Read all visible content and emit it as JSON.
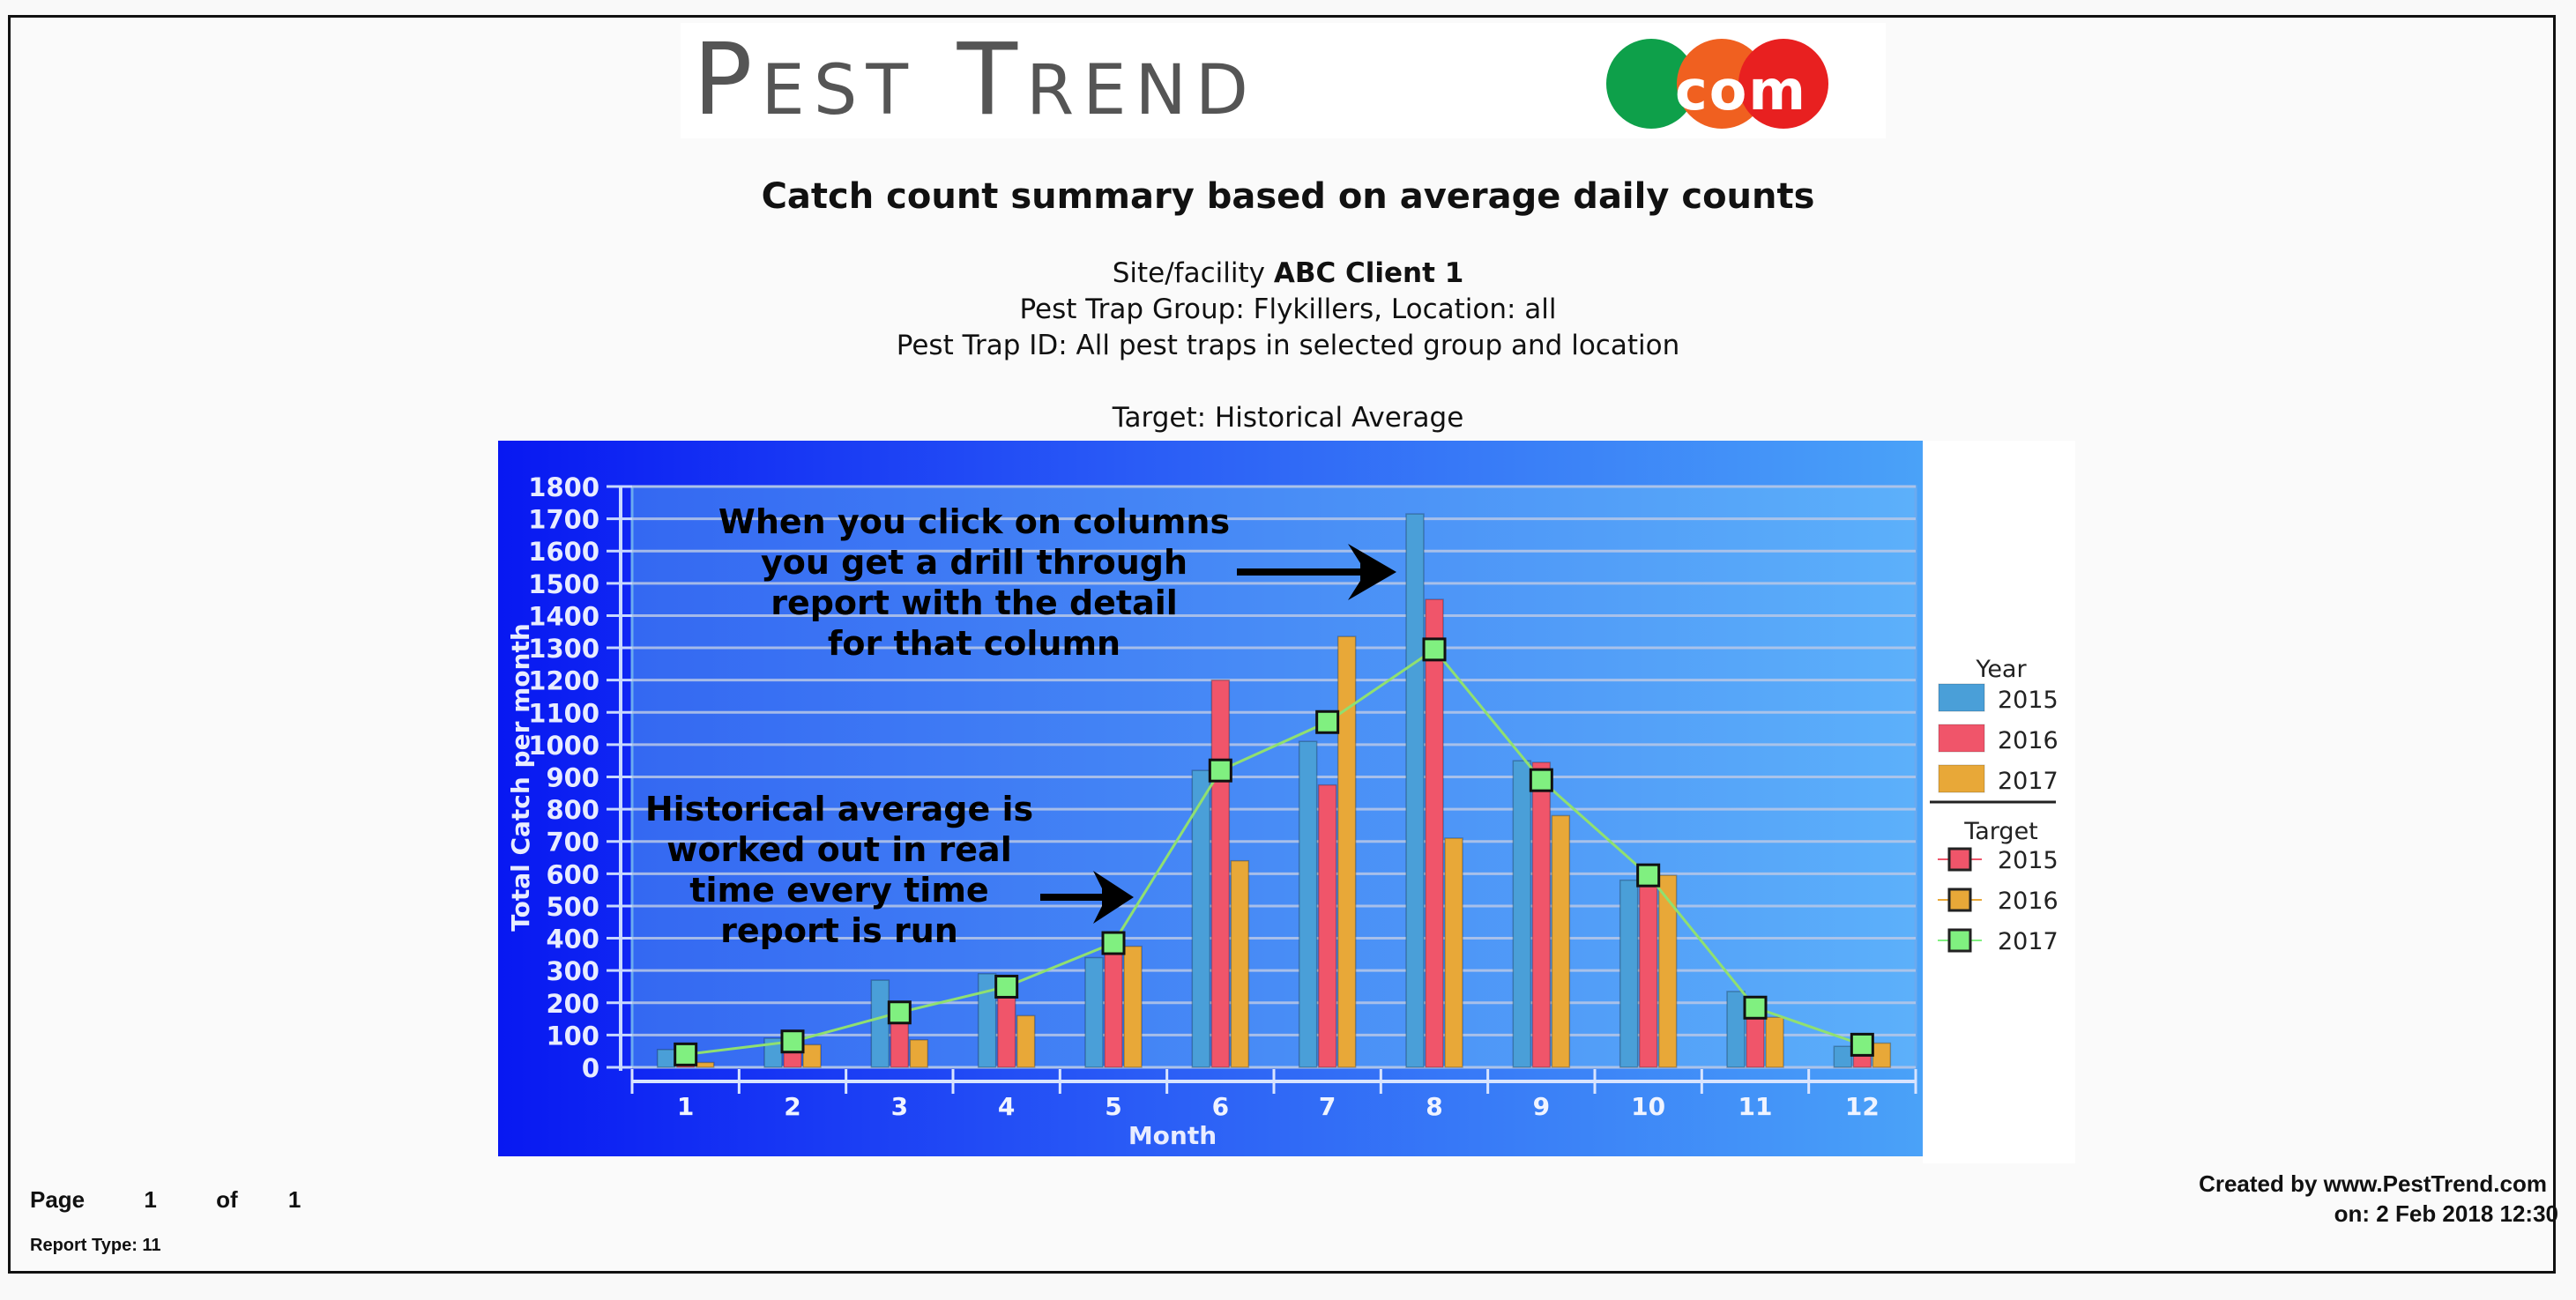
{
  "logo": {
    "text": "Pest Trend",
    "suffix": "com"
  },
  "report": {
    "title": "Catch count summary based on average daily counts",
    "site_label": "Site/facility",
    "site_value": "ABC Client 1",
    "group_line": "Pest Trap Group: Flykillers, Location: all",
    "trap_line": "Pest Trap ID: All pest traps in selected group and location",
    "target_line": "Target: Historical Average"
  },
  "chart_data": {
    "type": "bar",
    "title": "",
    "xlabel": "Month",
    "ylabel": "Total Catch per month",
    "ylim": [
      0,
      1800
    ],
    "yticks": [
      "0",
      "100",
      "200",
      "300",
      "400",
      "500",
      "600",
      "700",
      "800",
      "900",
      "1000",
      "1100",
      "1200",
      "1300",
      "1400",
      "1500",
      "1600",
      "1700",
      "1800"
    ],
    "categories": [
      "1",
      "2",
      "3",
      "4",
      "5",
      "6",
      "7",
      "8",
      "9",
      "10",
      "11",
      "12"
    ],
    "grid": true,
    "legend_position": "right",
    "series": [
      {
        "name": "2015",
        "group": "Year",
        "color": "#4a9fd8",
        "values": [
          55,
          90,
          270,
          290,
          340,
          920,
          1010,
          1715,
          950,
          580,
          235,
          65
        ]
      },
      {
        "name": "2016",
        "group": "Year",
        "color": "#f0556a",
        "values": [
          10,
          50,
          140,
          280,
          370,
          1200,
          875,
          1450,
          945,
          595,
          170,
          55
        ]
      },
      {
        "name": "2017",
        "group": "Year",
        "color": "#e8a838",
        "values": [
          15,
          70,
          85,
          160,
          375,
          640,
          1335,
          710,
          780,
          595,
          155,
          75
        ]
      }
    ],
    "target_series": [
      {
        "name": "2017",
        "group": "Target",
        "type": "line",
        "color": "#80f080",
        "values": [
          40,
          80,
          170,
          250,
          385,
          920,
          1070,
          1295,
          890,
          595,
          185,
          70
        ]
      }
    ],
    "legend": {
      "year_title": "Year",
      "year_items": [
        {
          "label": "2015",
          "color": "#4a9fd8"
        },
        {
          "label": "2016",
          "color": "#f0556a"
        },
        {
          "label": "2017",
          "color": "#e8a838"
        }
      ],
      "target_title": "Target",
      "target_items": [
        {
          "label": "2015",
          "color": "#f0556a"
        },
        {
          "label": "2016",
          "color": "#e8a838"
        },
        {
          "label": "2017",
          "color": "#80f080"
        }
      ]
    },
    "annotations": {
      "drill": [
        "When you click on columns",
        "you get a drill through",
        "report with the detail",
        "for that column"
      ],
      "historical": [
        "Historical average is",
        "worked out in real",
        "time every time",
        "report is run"
      ]
    }
  },
  "footer": {
    "page_label": "Page",
    "page_current": "1",
    "page_of": "of",
    "page_total": "1",
    "report_type": "Report Type: 11",
    "created_by": "Created by www.PestTrend.com",
    "created_on": "on: 2 Feb 2018 12:30"
  }
}
